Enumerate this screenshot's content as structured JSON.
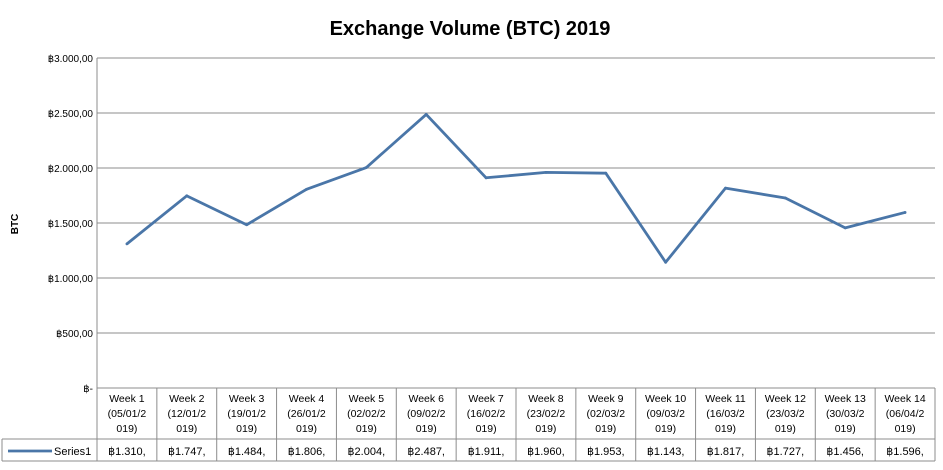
{
  "chart_data": {
    "type": "line",
    "title": "Exchange Volume (BTC) 2019",
    "ylabel": "BTC",
    "xlabel": "",
    "ylim": [
      0,
      3000
    ],
    "yticks": [
      0,
      500,
      1000,
      1500,
      2000,
      2500,
      3000
    ],
    "ytick_labels": [
      "฿-",
      "฿500,00",
      "฿1.000,00",
      "฿1.500,00",
      "฿2.000,00",
      "฿2.500,00",
      "฿3.000,00"
    ],
    "grid": true,
    "legend": "bottom-left (data table)",
    "categories": [
      [
        "Week 1",
        "(05/01/2",
        "019)"
      ],
      [
        "Week 2",
        "(12/01/2",
        "019)"
      ],
      [
        "Week 3",
        "(19/01/2",
        "019)"
      ],
      [
        "Week 4",
        "(26/01/2",
        "019)"
      ],
      [
        "Week 5",
        "(02/02/2",
        "019)"
      ],
      [
        "Week 6",
        "(09/02/2",
        "019)"
      ],
      [
        "Week 7",
        "(16/02/2",
        "019)"
      ],
      [
        "Week 8",
        "(23/02/2",
        "019)"
      ],
      [
        "Week 9",
        "(02/03/2",
        "019)"
      ],
      [
        "Week 10",
        "(09/03/2",
        "019)"
      ],
      [
        "Week 11",
        "(16/03/2",
        "019)"
      ],
      [
        "Week 12",
        "(23/03/2",
        "019)"
      ],
      [
        "Week 13",
        "(30/03/2",
        "019)"
      ],
      [
        "Week 14",
        "(06/04/2",
        "019)"
      ]
    ],
    "series": [
      {
        "name": "Series1",
        "color": "#4a76a8",
        "values": [
          1310,
          1747,
          1484,
          1806,
          2004,
          2487,
          1911,
          1960,
          1953,
          1143,
          1817,
          1727,
          1456,
          1596
        ],
        "table_labels": [
          "฿1.310,",
          "฿1.747,",
          "฿1.484,",
          "฿1.806,",
          "฿2.004,",
          "฿2.487,",
          "฿1.911,",
          "฿1.960,",
          "฿1.953,",
          "฿1.143,",
          "฿1.817,",
          "฿1.727,",
          "฿1.456,",
          "฿1.596,"
        ]
      }
    ]
  }
}
